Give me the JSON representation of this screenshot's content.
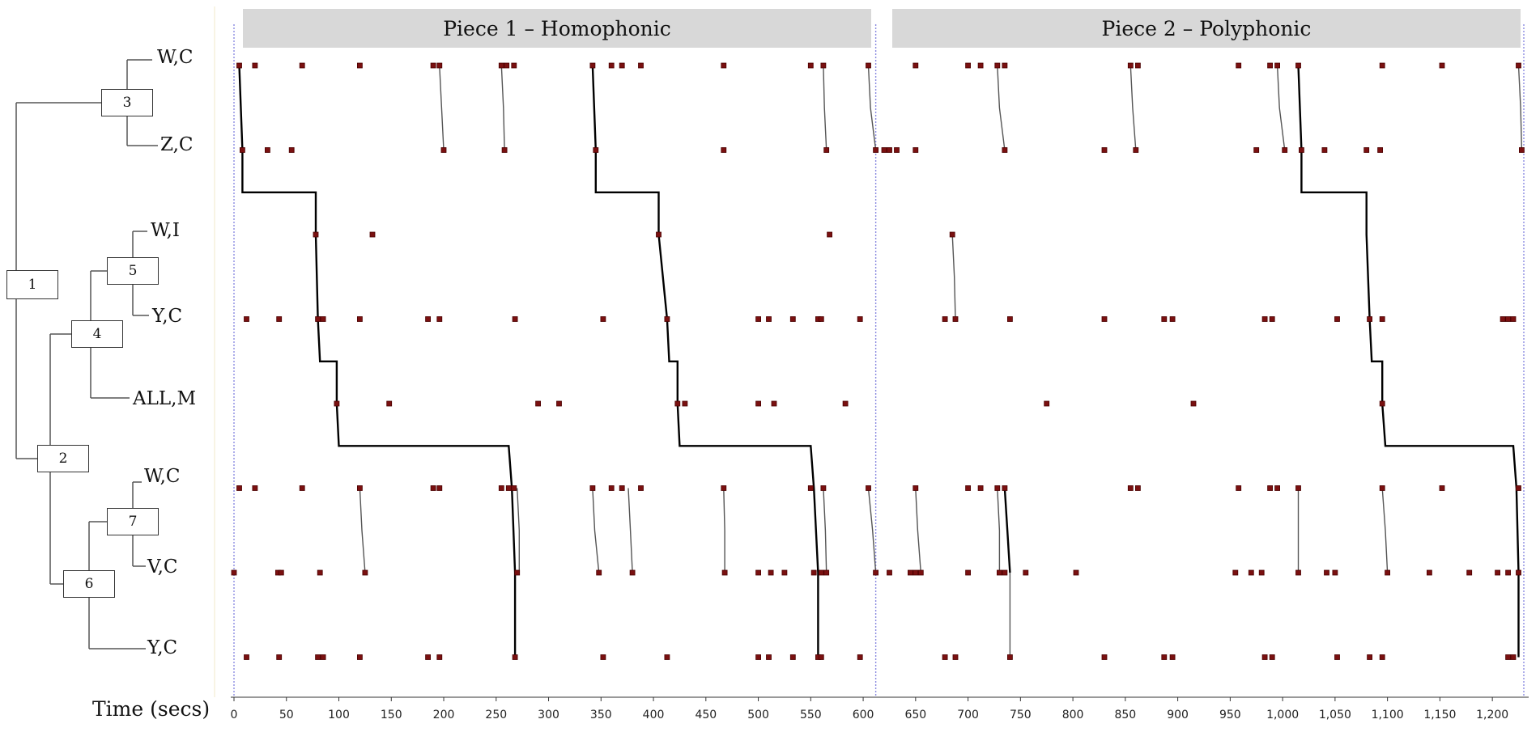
{
  "pieces": [
    {
      "label": "Piece 1 – Homophonic"
    },
    {
      "label": "Piece 2 – Polyphonic"
    }
  ],
  "dendrogram": {
    "leaves": [
      "W,C",
      "Z,C",
      "W,I",
      "Y,C",
      "ALL,M",
      "W,C",
      "V,C",
      "Y,C"
    ],
    "nodes": [
      "1",
      "2",
      "3",
      "4",
      "5",
      "6",
      "7"
    ]
  },
  "x_axis_label": "Time (secs)",
  "colors": {
    "point": "#7a1010",
    "point_edge": "#4a0000",
    "thick_line": "#000000",
    "thin_line": "#555555",
    "header_bg": "#d8d8d8",
    "boundary": "#8a8ae0"
  },
  "chart_data": {
    "type": "scatter",
    "xlabel": "Time (secs)",
    "xlim": [
      0,
      1230
    ],
    "xticks": [
      "0",
      "50",
      "100",
      "150",
      "200",
      "250",
      "300",
      "350",
      "400",
      "450",
      "500",
      "550",
      "600",
      "650",
      "700",
      "750",
      "800",
      "850",
      "900",
      "950",
      "1,000",
      "1,050",
      "1,100",
      "1,150",
      "1,200"
    ],
    "piece_boundary": 612,
    "rows": [
      "W,C",
      "Z,C",
      "W,I",
      "Y,C",
      "ALL,M",
      "W,C",
      "V,C",
      "Y,C"
    ],
    "series": [
      {
        "name": "W,C",
        "values": [
          5,
          20,
          65,
          120,
          190,
          196,
          255,
          260,
          267,
          342,
          360,
          370,
          388,
          467,
          550,
          562,
          605,
          650,
          700,
          712,
          728,
          735,
          855,
          862,
          958,
          988,
          995,
          1015,
          1095,
          1152,
          1225
        ]
      },
      {
        "name": "Z,C",
        "values": [
          8,
          32,
          55,
          200,
          258,
          345,
          467,
          565,
          612,
          620,
          625,
          632,
          650,
          735,
          830,
          860,
          975,
          1002,
          1018,
          1040,
          1080,
          1093,
          1228
        ]
      },
      {
        "name": "W,I",
        "values": [
          78,
          132,
          405,
          568,
          685
        ]
      },
      {
        "name": "Y,C",
        "values": [
          12,
          43,
          80,
          85,
          120,
          185,
          196,
          268,
          352,
          413,
          500,
          510,
          533,
          557,
          560,
          597,
          678,
          688,
          740,
          830,
          887,
          895,
          983,
          990,
          1052,
          1083,
          1095,
          1210,
          1215,
          1220
        ]
      },
      {
        "name": "ALL,M",
        "values": [
          98,
          148,
          290,
          310,
          423,
          430,
          500,
          515,
          583,
          775,
          915,
          1095
        ]
      },
      {
        "name": "W,C",
        "values": [
          5,
          20,
          65,
          120,
          190,
          196,
          255,
          262,
          267,
          342,
          360,
          370,
          388,
          467,
          550,
          562,
          605,
          650,
          700,
          712,
          728,
          735,
          855,
          862,
          958,
          988,
          995,
          1015,
          1095,
          1152,
          1225
        ]
      },
      {
        "name": "V,C",
        "values": [
          0,
          42,
          45,
          82,
          125,
          270,
          348,
          380,
          468,
          500,
          512,
          525,
          553,
          560,
          565,
          612,
          625,
          645,
          650,
          655,
          700,
          730,
          735,
          755,
          803,
          955,
          970,
          980,
          1015,
          1042,
          1050,
          1100,
          1140,
          1178,
          1205,
          1215,
          1225
        ]
      },
      {
        "name": "Y,C",
        "values": [
          12,
          43,
          80,
          85,
          120,
          185,
          196,
          268,
          352,
          413,
          500,
          510,
          533,
          557,
          560,
          597,
          678,
          688,
          740,
          830,
          887,
          895,
          983,
          990,
          1052,
          1083,
          1095,
          1215,
          1220
        ]
      }
    ],
    "thick_paths": [
      [
        [
          5,
          0
        ],
        [
          8,
          1
        ],
        [
          8,
          1.5
        ],
        [
          78,
          1.5
        ],
        [
          78,
          2
        ],
        [
          80,
          3
        ],
        [
          82,
          3.5
        ],
        [
          98,
          3.5
        ],
        [
          98,
          4
        ],
        [
          100,
          4.5
        ],
        [
          262,
          4.5
        ],
        [
          265,
          5
        ],
        [
          268,
          6
        ],
        [
          268,
          7
        ]
      ],
      [
        [
          342,
          0
        ],
        [
          345,
          1
        ],
        [
          345,
          1.5
        ],
        [
          405,
          1.5
        ],
        [
          405,
          2
        ],
        [
          413,
          3
        ],
        [
          415,
          3.5
        ],
        [
          423,
          3.5
        ],
        [
          423,
          4
        ],
        [
          425,
          4.5
        ],
        [
          550,
          4.5
        ],
        [
          553,
          5
        ],
        [
          557,
          6
        ],
        [
          557,
          7
        ]
      ],
      [
        [
          1015,
          0
        ],
        [
          1018,
          1
        ],
        [
          1018,
          1.5
        ],
        [
          1080,
          1.5
        ],
        [
          1080,
          2
        ],
        [
          1083,
          3
        ],
        [
          1085,
          3.5
        ],
        [
          1095,
          3.5
        ],
        [
          1095,
          4
        ],
        [
          1098,
          4.5
        ],
        [
          1220,
          4.5
        ],
        [
          1223,
          5
        ],
        [
          1225,
          6
        ],
        [
          1225,
          7
        ]
      ],
      [
        [
          735,
          5
        ],
        [
          740,
          6
        ]
      ]
    ],
    "thin_paths": [
      [
        [
          196,
          0
        ],
        [
          198,
          0.5
        ],
        [
          200,
          1
        ]
      ],
      [
        [
          255,
          0
        ],
        [
          257,
          0.5
        ],
        [
          258,
          1
        ]
      ],
      [
        [
          562,
          0
        ],
        [
          563,
          0.5
        ],
        [
          565,
          1
        ]
      ],
      [
        [
          605,
          0
        ],
        [
          607,
          0.5
        ],
        [
          612,
          1
        ]
      ],
      [
        [
          728,
          0
        ],
        [
          730,
          0.5
        ],
        [
          735,
          1
        ]
      ],
      [
        [
          855,
          0
        ],
        [
          857,
          0.5
        ],
        [
          860,
          1
        ]
      ],
      [
        [
          995,
          0
        ],
        [
          997,
          0.5
        ],
        [
          1002,
          1
        ]
      ],
      [
        [
          1225,
          0
        ],
        [
          1227,
          0.5
        ],
        [
          1228,
          1
        ]
      ],
      [
        [
          685,
          2
        ],
        [
          687,
          2.5
        ],
        [
          688,
          3
        ]
      ],
      [
        [
          120,
          5
        ],
        [
          122,
          5.5
        ],
        [
          125,
          6
        ]
      ],
      [
        [
          270,
          5
        ],
        [
          272,
          5.5
        ],
        [
          272,
          6
        ]
      ],
      [
        [
          342,
          5
        ],
        [
          344,
          5.5
        ],
        [
          348,
          6
        ]
      ],
      [
        [
          376,
          5
        ],
        [
          378,
          5.5
        ],
        [
          380,
          6
        ]
      ],
      [
        [
          467,
          5
        ],
        [
          468,
          5.5
        ],
        [
          468,
          6
        ]
      ],
      [
        [
          562,
          5
        ],
        [
          564,
          5.5
        ],
        [
          565,
          6
        ]
      ],
      [
        [
          605,
          5
        ],
        [
          609,
          5.5
        ],
        [
          612,
          6
        ]
      ],
      [
        [
          650,
          5
        ],
        [
          652,
          5.5
        ],
        [
          655,
          6
        ]
      ],
      [
        [
          728,
          5
        ],
        [
          730,
          5.5
        ],
        [
          730,
          6
        ]
      ],
      [
        [
          1015,
          5
        ],
        [
          1015,
          5.5
        ],
        [
          1015,
          6
        ]
      ],
      [
        [
          1095,
          5
        ],
        [
          1098,
          5.5
        ],
        [
          1100,
          6
        ]
      ],
      [
        [
          740,
          6
        ],
        [
          740,
          7
        ]
      ]
    ]
  }
}
